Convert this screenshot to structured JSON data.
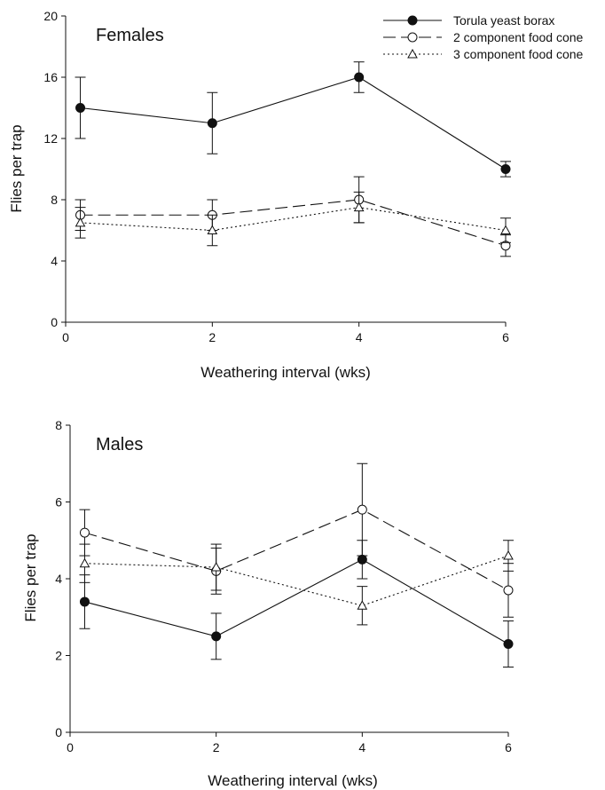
{
  "chart_data": [
    {
      "type": "line",
      "panel_label": "Females",
      "xlabel": "Weathering interval (wks)",
      "ylabel": "Flies per trap",
      "xlim": [
        0,
        6
      ],
      "ylim": [
        0,
        20
      ],
      "xticks": [
        0,
        2,
        4,
        6
      ],
      "yticks": [
        0,
        4,
        8,
        12,
        16,
        20
      ],
      "x": [
        0.2,
        2,
        4,
        6
      ],
      "legend": {
        "placement": "top-right"
      },
      "grid": false,
      "series": [
        {
          "name": "Torula yeast borax",
          "marker": "filled-circle",
          "line": "solid",
          "values": [
            14,
            13,
            16,
            10
          ],
          "error": [
            2,
            2,
            1,
            0.5
          ]
        },
        {
          "name": "2 component food cone",
          "marker": "open-circle",
          "line": "dashed",
          "values": [
            7,
            7,
            8,
            5
          ],
          "error": [
            1,
            1,
            1.5,
            0.7
          ]
        },
        {
          "name": "3 component food cone",
          "marker": "open-triangle",
          "line": "dotted",
          "values": [
            6.5,
            6,
            7.5,
            6
          ],
          "error": [
            1,
            1,
            1,
            0.8
          ]
        }
      ]
    },
    {
      "type": "line",
      "panel_label": "Males",
      "xlabel": "Weathering interval (wks)",
      "ylabel": "Flies per trap",
      "xlim": [
        0,
        6
      ],
      "ylim": [
        0,
        8
      ],
      "xticks": [
        0,
        2,
        4,
        6
      ],
      "yticks": [
        0,
        2,
        4,
        6,
        8
      ],
      "x": [
        0.2,
        2,
        4,
        6
      ],
      "grid": false,
      "series": [
        {
          "name": "Torula yeast borax",
          "marker": "filled-circle",
          "line": "solid",
          "values": [
            3.4,
            2.5,
            4.5,
            2.3
          ],
          "error": [
            0.7,
            0.6,
            0.5,
            0.6
          ]
        },
        {
          "name": "2 component food cone",
          "marker": "open-circle",
          "line": "dashed",
          "values": [
            5.2,
            4.2,
            5.8,
            3.7
          ],
          "error": [
            0.6,
            0.6,
            1.2,
            0.7
          ]
        },
        {
          "name": "3 component food cone",
          "marker": "open-triangle",
          "line": "dotted",
          "values": [
            4.4,
            4.3,
            3.3,
            4.6
          ],
          "error": [
            0.5,
            0.6,
            0.5,
            0.4
          ]
        }
      ]
    }
  ]
}
